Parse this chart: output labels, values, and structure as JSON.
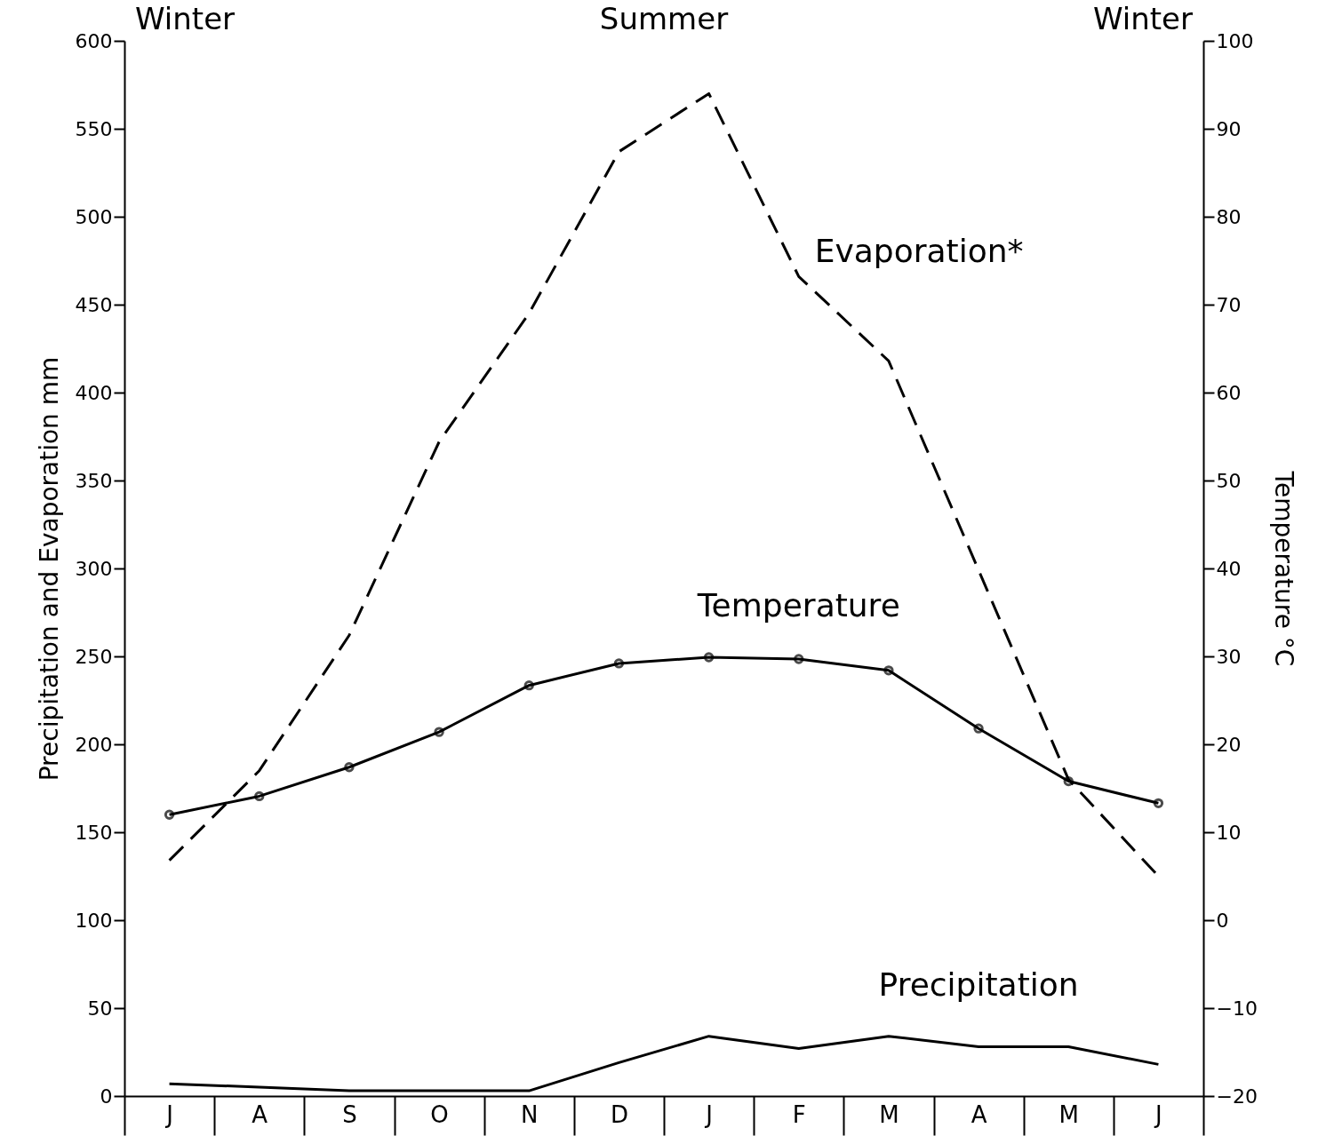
{
  "chart_data": {
    "type": "line",
    "ylabel": "Precipitation and Evaporation mm",
    "y2label": "Temperature °C",
    "categories": [
      "J",
      "A",
      "S",
      "O",
      "N",
      "D",
      "J",
      "F",
      "M",
      "A",
      "M",
      "J"
    ],
    "series": [
      {
        "name": "Evaporation*",
        "color": "#000000",
        "line_style": "dashed",
        "values": [
          134,
          185,
          262,
          372,
          445,
          537,
          570,
          466,
          418,
          299,
          180,
          125
        ]
      },
      {
        "name": "Temperature",
        "color": "#000000",
        "axis": "y2",
        "marker": "circle",
        "line_style": "solid",
        "values": [
          12.0,
          14.1,
          17.4,
          21.4,
          26.7,
          29.2,
          29.9,
          29.7,
          28.4,
          21.8,
          15.8,
          13.3
        ]
      },
      {
        "name": "Precipitation",
        "color": "#000000",
        "line_style": "solid",
        "values": [
          7,
          5,
          3,
          3,
          3,
          19,
          34,
          27,
          34,
          28,
          28,
          18
        ]
      }
    ],
    "ylim": [
      0,
      600
    ],
    "yticks": [
      0,
      50,
      100,
      150,
      200,
      250,
      300,
      350,
      400,
      450,
      500,
      550,
      600
    ],
    "y2lim": [
      -20,
      100
    ],
    "y2ticks": [
      -20,
      -10,
      0,
      10,
      20,
      30,
      40,
      50,
      60,
      70,
      80,
      90,
      100
    ],
    "annotations": [
      "Winter",
      "Summer",
      "Winter"
    ],
    "grid": false
  }
}
